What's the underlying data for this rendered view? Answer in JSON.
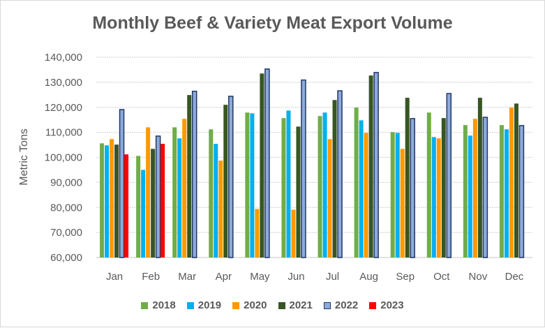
{
  "chart_data": {
    "type": "bar",
    "title": "Monthly Beef & Variety Meat Export Volume",
    "ylabel": "Metric Tons",
    "xlabel": "",
    "ylim": [
      60000,
      140000
    ],
    "yticks": [
      "60,000",
      "70,000",
      "80,000",
      "90,000",
      "100,000",
      "110,000",
      "120,000",
      "130,000",
      "140,000"
    ],
    "grid": true,
    "legend": "bottom",
    "categories": [
      "Jan",
      "Feb",
      "Mar",
      "Apr",
      "May",
      "Jun",
      "Jul",
      "Aug",
      "Sep",
      "Oct",
      "Nov",
      "Dec"
    ],
    "series": [
      {
        "name": "2018",
        "color": "#70ad47",
        "values": [
          105600,
          100600,
          112000,
          111200,
          117900,
          115700,
          116500,
          119900,
          110100,
          117900,
          112900,
          112900
        ]
      },
      {
        "name": "2019",
        "color": "#00b0f0",
        "values": [
          104800,
          95000,
          107600,
          105400,
          117600,
          118700,
          117900,
          114800,
          109800,
          108100,
          108700,
          111200
        ]
      },
      {
        "name": "2020",
        "color": "#ff9900",
        "values": [
          107300,
          112000,
          115400,
          98700,
          79400,
          79100,
          107300,
          109800,
          103400,
          107600,
          115400,
          119900
        ]
      },
      {
        "name": "2021",
        "color": "#375623",
        "values": [
          105100,
          103400,
          124900,
          121000,
          133500,
          112300,
          122900,
          132700,
          123800,
          115700,
          123800,
          121500
        ]
      },
      {
        "name": "2022",
        "color": "#8eaadb",
        "border": "#203864",
        "values": [
          119100,
          108500,
          126400,
          124400,
          135300,
          130900,
          126600,
          133900,
          115500,
          125500,
          116000,
          112700
        ]
      },
      {
        "name": "2023",
        "color": "#ff0000",
        "values": [
          101200,
          105400,
          null,
          null,
          null,
          null,
          null,
          null,
          null,
          null,
          null,
          null
        ]
      }
    ]
  }
}
